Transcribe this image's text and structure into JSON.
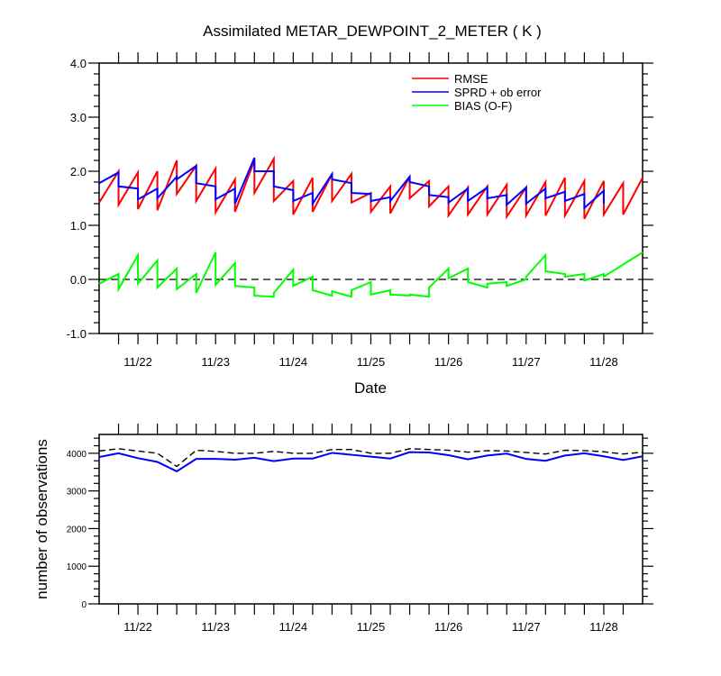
{
  "chart_data": [
    {
      "type": "line",
      "title": "Assimilated METAR_DEWPOINT_2_METER ( K )",
      "xlabel": "Date",
      "ylabel": "",
      "x_range_days": [
        0,
        7
      ],
      "x_ticks": [
        {
          "day": 0.5,
          "label": "11/22"
        },
        {
          "day": 1.5,
          "label": "11/23"
        },
        {
          "day": 2.5,
          "label": "11/24"
        },
        {
          "day": 3.5,
          "label": "11/25"
        },
        {
          "day": 4.5,
          "label": "11/26"
        },
        {
          "day": 5.5,
          "label": "11/27"
        },
        {
          "day": 6.5,
          "label": "11/28"
        }
      ],
      "ylim": [
        -1.0,
        4.0
      ],
      "y_ticks": [
        {
          "value": 4.0,
          "label": "4.0"
        },
        {
          "value": 3.0,
          "label": "3.0"
        },
        {
          "value": 2.0,
          "label": "2.0"
        },
        {
          "value": 1.0,
          "label": "1.0"
        },
        {
          "value": 0.0,
          "label": "0.0"
        },
        {
          "value": -1.0,
          "label": "-1.0"
        }
      ],
      "zero_line": true,
      "legend_position": "top-right",
      "series": [
        {
          "name": "RMSE",
          "color": "#ff0000",
          "points": [
            [
              0.0,
              1.42
            ],
            [
              0.25,
              2.0
            ],
            [
              0.25,
              1.38
            ],
            [
              0.5,
              1.98
            ],
            [
              0.5,
              1.3
            ],
            [
              0.75,
              2.0
            ],
            [
              0.75,
              1.28
            ],
            [
              1.0,
              2.2
            ],
            [
              1.0,
              1.58
            ],
            [
              1.25,
              2.1
            ],
            [
              1.25,
              1.45
            ],
            [
              1.5,
              2.05
            ],
            [
              1.5,
              1.24
            ],
            [
              1.75,
              1.85
            ],
            [
              1.75,
              1.25
            ],
            [
              2.0,
              2.2
            ],
            [
              2.0,
              1.6
            ],
            [
              2.25,
              2.23
            ],
            [
              2.25,
              1.45
            ],
            [
              2.5,
              1.82
            ],
            [
              2.5,
              1.2
            ],
            [
              2.75,
              1.88
            ],
            [
              2.75,
              1.25
            ],
            [
              3.0,
              1.95
            ],
            [
              3.0,
              1.45
            ],
            [
              3.25,
              1.95
            ],
            [
              3.25,
              1.42
            ],
            [
              3.5,
              1.6
            ],
            [
              3.5,
              1.25
            ],
            [
              3.75,
              1.72
            ],
            [
              3.75,
              1.22
            ],
            [
              4.0,
              1.9
            ],
            [
              4.0,
              1.5
            ],
            [
              4.25,
              1.82
            ],
            [
              4.25,
              1.35
            ],
            [
              4.5,
              1.72
            ],
            [
              4.5,
              1.18
            ],
            [
              4.75,
              1.7
            ],
            [
              4.75,
              1.2
            ],
            [
              5.0,
              1.72
            ],
            [
              5.0,
              1.2
            ],
            [
              5.25,
              1.75
            ],
            [
              5.25,
              1.16
            ],
            [
              5.5,
              1.7
            ],
            [
              5.5,
              1.18
            ],
            [
              5.75,
              1.8
            ],
            [
              5.75,
              1.18
            ],
            [
              6.0,
              1.88
            ],
            [
              6.0,
              1.18
            ],
            [
              6.25,
              1.82
            ],
            [
              6.25,
              1.12
            ],
            [
              6.5,
              1.82
            ],
            [
              6.5,
              1.2
            ],
            [
              6.75,
              1.78
            ],
            [
              6.75,
              1.2
            ],
            [
              7.0,
              1.88
            ]
          ]
        },
        {
          "name": "SPRD + ob error",
          "color": "#0000ff",
          "points": [
            [
              0.0,
              1.78
            ],
            [
              0.25,
              1.98
            ],
            [
              0.25,
              1.72
            ],
            [
              0.5,
              1.68
            ],
            [
              0.5,
              1.48
            ],
            [
              0.75,
              1.68
            ],
            [
              0.75,
              1.5
            ],
            [
              1.0,
              1.9
            ],
            [
              1.0,
              1.85
            ],
            [
              1.25,
              2.1
            ],
            [
              1.25,
              1.78
            ],
            [
              1.5,
              1.72
            ],
            [
              1.5,
              1.48
            ],
            [
              1.75,
              1.68
            ],
            [
              1.75,
              1.4
            ],
            [
              2.0,
              2.25
            ],
            [
              2.0,
              2.0
            ],
            [
              2.25,
              2.0
            ],
            [
              2.25,
              1.72
            ],
            [
              2.5,
              1.65
            ],
            [
              2.5,
              1.45
            ],
            [
              2.75,
              1.6
            ],
            [
              2.75,
              1.4
            ],
            [
              3.0,
              1.95
            ],
            [
              3.0,
              1.85
            ],
            [
              3.25,
              1.78
            ],
            [
              3.25,
              1.6
            ],
            [
              3.5,
              1.58
            ],
            [
              3.5,
              1.45
            ],
            [
              3.75,
              1.52
            ],
            [
              3.75,
              1.45
            ],
            [
              4.0,
              1.9
            ],
            [
              4.0,
              1.8
            ],
            [
              4.25,
              1.72
            ],
            [
              4.25,
              1.56
            ],
            [
              4.5,
              1.52
            ],
            [
              4.5,
              1.42
            ],
            [
              4.75,
              1.68
            ],
            [
              4.75,
              1.45
            ],
            [
              5.0,
              1.7
            ],
            [
              5.0,
              1.5
            ],
            [
              5.25,
              1.56
            ],
            [
              5.25,
              1.38
            ],
            [
              5.5,
              1.7
            ],
            [
              5.5,
              1.4
            ],
            [
              5.75,
              1.68
            ],
            [
              5.75,
              1.5
            ],
            [
              6.0,
              1.62
            ],
            [
              6.0,
              1.45
            ],
            [
              6.25,
              1.58
            ],
            [
              6.25,
              1.32
            ],
            [
              6.5,
              1.64
            ],
            [
              6.5,
              1.4
            ]
          ]
        },
        {
          "name": "BIAS (O-F)",
          "color": "#00ff00",
          "points": [
            [
              0.0,
              -0.08
            ],
            [
              0.25,
              0.1
            ],
            [
              0.25,
              -0.18
            ],
            [
              0.5,
              0.45
            ],
            [
              0.5,
              -0.08
            ],
            [
              0.75,
              0.35
            ],
            [
              0.75,
              -0.15
            ],
            [
              1.0,
              0.2
            ],
            [
              1.0,
              -0.18
            ],
            [
              1.25,
              0.1
            ],
            [
              1.25,
              -0.25
            ],
            [
              1.5,
              0.5
            ],
            [
              1.5,
              -0.1
            ],
            [
              1.75,
              0.3
            ],
            [
              1.75,
              -0.12
            ],
            [
              2.0,
              -0.15
            ],
            [
              2.0,
              -0.3
            ],
            [
              2.25,
              -0.32
            ],
            [
              2.25,
              -0.25
            ],
            [
              2.5,
              0.18
            ],
            [
              2.5,
              -0.12
            ],
            [
              2.75,
              0.05
            ],
            [
              2.75,
              -0.2
            ],
            [
              3.0,
              -0.3
            ],
            [
              3.0,
              -0.22
            ],
            [
              3.25,
              -0.32
            ],
            [
              3.25,
              -0.2
            ],
            [
              3.5,
              -0.05
            ],
            [
              3.5,
              -0.28
            ],
            [
              3.75,
              -0.2
            ],
            [
              3.75,
              -0.28
            ],
            [
              4.0,
              -0.3
            ],
            [
              4.0,
              -0.28
            ],
            [
              4.25,
              -0.32
            ],
            [
              4.25,
              -0.15
            ],
            [
              4.5,
              0.2
            ],
            [
              4.5,
              0.02
            ],
            [
              4.75,
              0.2
            ],
            [
              4.75,
              -0.05
            ],
            [
              5.0,
              -0.15
            ],
            [
              5.0,
              -0.08
            ],
            [
              5.25,
              -0.05
            ],
            [
              5.25,
              -0.12
            ],
            [
              5.5,
              0.0
            ],
            [
              5.5,
              0.05
            ],
            [
              5.75,
              0.45
            ],
            [
              5.75,
              0.15
            ],
            [
              6.0,
              0.1
            ],
            [
              6.0,
              0.05
            ],
            [
              6.25,
              0.1
            ],
            [
              6.25,
              -0.02
            ],
            [
              6.5,
              0.1
            ],
            [
              6.5,
              0.05
            ],
            [
              7.0,
              0.5
            ]
          ]
        }
      ]
    },
    {
      "type": "line",
      "title": "",
      "xlabel": "",
      "ylabel": "number of observations",
      "x_range_days": [
        0,
        7
      ],
      "x_ticks": [
        {
          "day": 0.5,
          "label": "11/22"
        },
        {
          "day": 1.5,
          "label": "11/23"
        },
        {
          "day": 2.5,
          "label": "11/24"
        },
        {
          "day": 3.5,
          "label": "11/25"
        },
        {
          "day": 4.5,
          "label": "11/26"
        },
        {
          "day": 5.5,
          "label": "11/27"
        },
        {
          "day": 6.5,
          "label": "11/28"
        }
      ],
      "ylim": [
        0,
        4500
      ],
      "y_ticks": [
        {
          "value": 4000,
          "label": "4000"
        },
        {
          "value": 3000,
          "label": "3000"
        },
        {
          "value": 2000,
          "label": "2000"
        },
        {
          "value": 1000,
          "label": "1000"
        },
        {
          "value": 0,
          "label": "0"
        }
      ],
      "series": [
        {
          "name": "",
          "color": "#000000",
          "dashed": true,
          "points": [
            [
              0.0,
              4060
            ],
            [
              0.25,
              4120
            ],
            [
              0.5,
              4060
            ],
            [
              0.75,
              4000
            ],
            [
              1.0,
              3650
            ],
            [
              1.25,
              4080
            ],
            [
              1.5,
              4050
            ],
            [
              1.75,
              4000
            ],
            [
              2.0,
              4000
            ],
            [
              2.25,
              4050
            ],
            [
              2.5,
              4000
            ],
            [
              2.75,
              4000
            ],
            [
              3.0,
              4100
            ],
            [
              3.25,
              4100
            ],
            [
              3.5,
              4000
            ],
            [
              3.75,
              4000
            ],
            [
              4.0,
              4120
            ],
            [
              4.25,
              4100
            ],
            [
              4.5,
              4080
            ],
            [
              4.75,
              4030
            ],
            [
              5.0,
              4070
            ],
            [
              5.25,
              4060
            ],
            [
              5.5,
              4020
            ],
            [
              5.75,
              3980
            ],
            [
              6.0,
              4080
            ],
            [
              6.25,
              4070
            ],
            [
              6.5,
              4040
            ],
            [
              6.75,
              3980
            ],
            [
              7.0,
              4030
            ]
          ]
        },
        {
          "name": "",
          "color": "#0000ff",
          "points": [
            [
              0.0,
              3900
            ],
            [
              0.25,
              4000
            ],
            [
              0.5,
              3870
            ],
            [
              0.75,
              3770
            ],
            [
              1.0,
              3520
            ],
            [
              1.25,
              3850
            ],
            [
              1.5,
              3850
            ],
            [
              1.75,
              3830
            ],
            [
              2.0,
              3880
            ],
            [
              2.25,
              3790
            ],
            [
              2.5,
              3860
            ],
            [
              2.75,
              3860
            ],
            [
              3.0,
              4010
            ],
            [
              3.25,
              3960
            ],
            [
              3.5,
              3910
            ],
            [
              3.75,
              3860
            ],
            [
              4.0,
              4030
            ],
            [
              4.25,
              4020
            ],
            [
              4.5,
              3950
            ],
            [
              4.75,
              3840
            ],
            [
              5.0,
              3940
            ],
            [
              5.25,
              3990
            ],
            [
              5.5,
              3850
            ],
            [
              5.75,
              3800
            ],
            [
              6.0,
              3940
            ],
            [
              6.25,
              4000
            ],
            [
              6.5,
              3920
            ],
            [
              6.75,
              3820
            ],
            [
              7.0,
              3920
            ]
          ]
        }
      ]
    }
  ]
}
